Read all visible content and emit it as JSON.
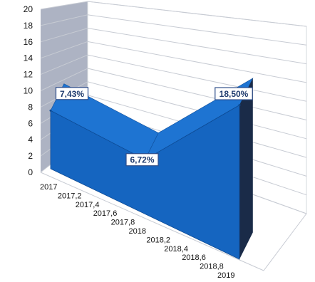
{
  "chart_data": {
    "type": "area",
    "three_d": true,
    "x": [
      "2017",
      "2017,2",
      "2017,4",
      "2017,6",
      "2017,8",
      "2018",
      "2018,2",
      "2018,4",
      "2018,6",
      "2018,8",
      "2019"
    ],
    "series": [
      {
        "points": [
          {
            "x": 2017,
            "y": 7.43
          },
          {
            "x": 2018,
            "y": 6.72
          },
          {
            "x": 2019,
            "y": 18.5
          }
        ]
      }
    ],
    "data_labels": [
      "7,43%",
      "6,72%",
      "18,50%"
    ],
    "y_ticks": [
      "0",
      "2",
      "4",
      "6",
      "8",
      "10",
      "12",
      "14",
      "16",
      "18",
      "20"
    ],
    "ylim": [
      0,
      20
    ],
    "xlim": [
      2017,
      2019
    ],
    "grid": true,
    "legend": "none",
    "colors": {
      "front": "#1565c0",
      "top": "#1e74d2",
      "side": "#1a2b48",
      "wall": "#9fa6b8",
      "grid": "#c7cbd3"
    }
  }
}
